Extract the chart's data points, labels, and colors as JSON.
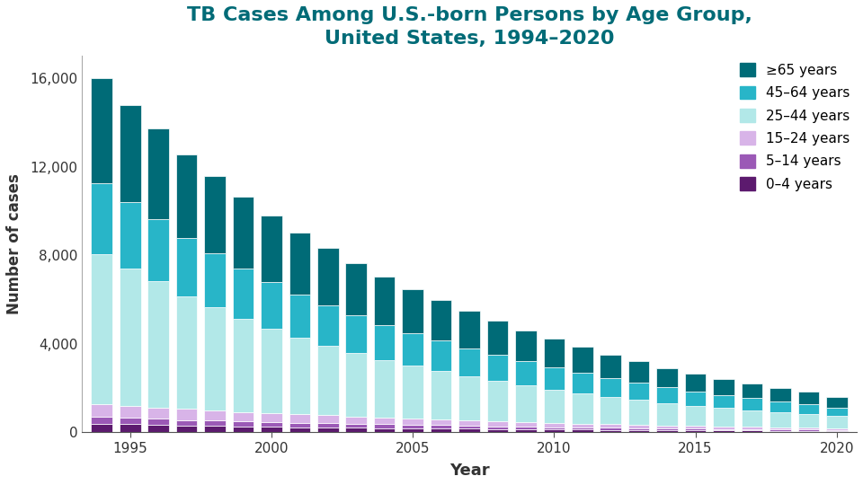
{
  "title": "TB Cases Among U.S.-born Persons by Age Group,\nUnited States, 1994–2020",
  "xlabel": "Year",
  "ylabel": "Number of cases",
  "years": [
    1994,
    1995,
    1996,
    1997,
    1998,
    1999,
    2000,
    2001,
    2002,
    2003,
    2004,
    2005,
    2006,
    2007,
    2008,
    2009,
    2010,
    2011,
    2012,
    2013,
    2014,
    2015,
    2016,
    2017,
    2018,
    2019,
    2020
  ],
  "age_groups": [
    {
      "label": "0–4 years",
      "color": "#5c1a6e"
    },
    {
      "label": "5–14 years",
      "color": "#9b59b6"
    },
    {
      "label": "15–24 years",
      "color": "#d8b4e8"
    },
    {
      "label": "25–44 years",
      "color": "#b2e8e8"
    },
    {
      "label": "45–64 years",
      "color": "#28b5c8"
    },
    {
      "label": "≥65 years",
      "color": "#006b77"
    }
  ],
  "data": {
    "0–4 years": [
      390,
      360,
      335,
      305,
      280,
      260,
      245,
      235,
      215,
      205,
      195,
      185,
      175,
      165,
      150,
      135,
      125,
      115,
      105,
      100,
      90,
      85,
      80,
      75,
      68,
      62,
      58
    ],
    "5–14 years": [
      300,
      290,
      270,
      255,
      240,
      225,
      215,
      200,
      190,
      175,
      165,
      155,
      145,
      135,
      125,
      115,
      108,
      100,
      92,
      85,
      78,
      72,
      66,
      61,
      56,
      52,
      46
    ],
    "15–24 years": [
      570,
      550,
      520,
      490,
      465,
      440,
      415,
      390,
      365,
      340,
      315,
      295,
      275,
      255,
      235,
      215,
      195,
      180,
      165,
      150,
      138,
      126,
      115,
      104,
      95,
      87,
      76
    ],
    "25–44 years": [
      6800,
      6200,
      5700,
      5100,
      4650,
      4200,
      3800,
      3450,
      3150,
      2850,
      2600,
      2380,
      2180,
      1990,
      1820,
      1660,
      1510,
      1370,
      1250,
      1130,
      1020,
      925,
      840,
      760,
      690,
      625,
      545
    ],
    "45–64 years": [
      3200,
      3000,
      2820,
      2620,
      2440,
      2270,
      2100,
      1960,
      1820,
      1700,
      1580,
      1460,
      1360,
      1260,
      1165,
      1075,
      990,
      910,
      835,
      765,
      700,
      640,
      585,
      535,
      488,
      443,
      390
    ],
    "≥65 years": [
      4750,
      4400,
      4080,
      3800,
      3520,
      3250,
      3000,
      2790,
      2580,
      2380,
      2190,
      2010,
      1850,
      1695,
      1550,
      1415,
      1290,
      1175,
      1070,
      972,
      884,
      805,
      732,
      665,
      606,
      550,
      486
    ]
  },
  "ylim": [
    0,
    17000
  ],
  "yticks": [
    0,
    4000,
    8000,
    12000,
    16000
  ],
  "background_color": "#ffffff",
  "title_color": "#006b77",
  "axis_label_color": "#333333",
  "bar_width": 0.75
}
